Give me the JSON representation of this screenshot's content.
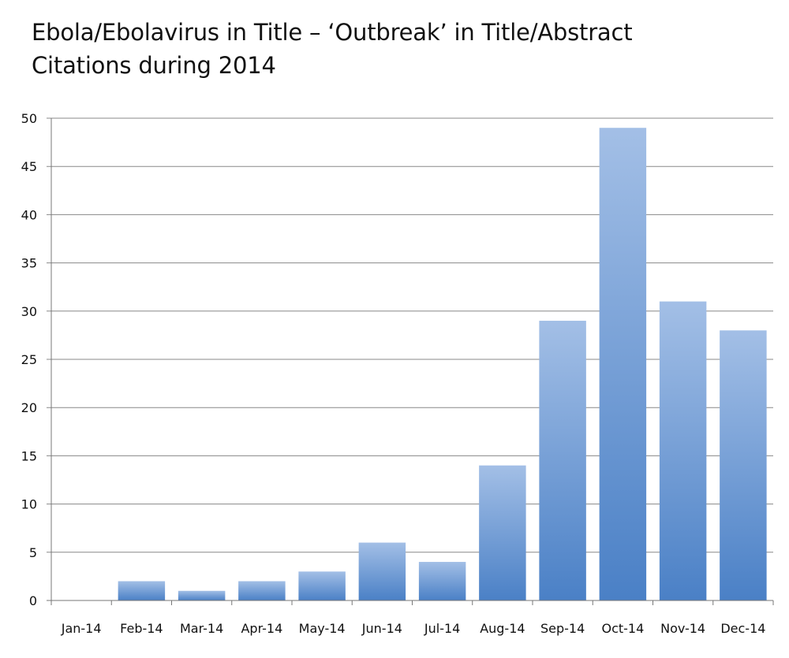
{
  "chart_data": {
    "type": "bar",
    "title": "Ebola/Ebolavirus in Title – ‘Outbreak’ in Title/Abstract",
    "subtitle": "Citations during 2014",
    "xlabel": "",
    "ylabel": "",
    "categories": [
      "Jan-14",
      "Feb-14",
      "Mar-14",
      "Apr-14",
      "May-14",
      "Jun-14",
      "Jul-14",
      "Aug-14",
      "Sep-14",
      "Oct-14",
      "Nov-14",
      "Dec-14"
    ],
    "values": [
      0,
      2,
      1,
      2,
      3,
      6,
      4,
      14,
      29,
      49,
      31,
      28
    ],
    "ylim": [
      0,
      50
    ],
    "yticks": [
      0,
      5,
      10,
      15,
      20,
      25,
      30,
      35,
      40,
      45,
      50
    ],
    "grid": true,
    "legend": "none",
    "colors": {
      "bar_top": "#a3bfe6",
      "bar_bottom": "#4a80c6",
      "grid": "#888888"
    }
  }
}
